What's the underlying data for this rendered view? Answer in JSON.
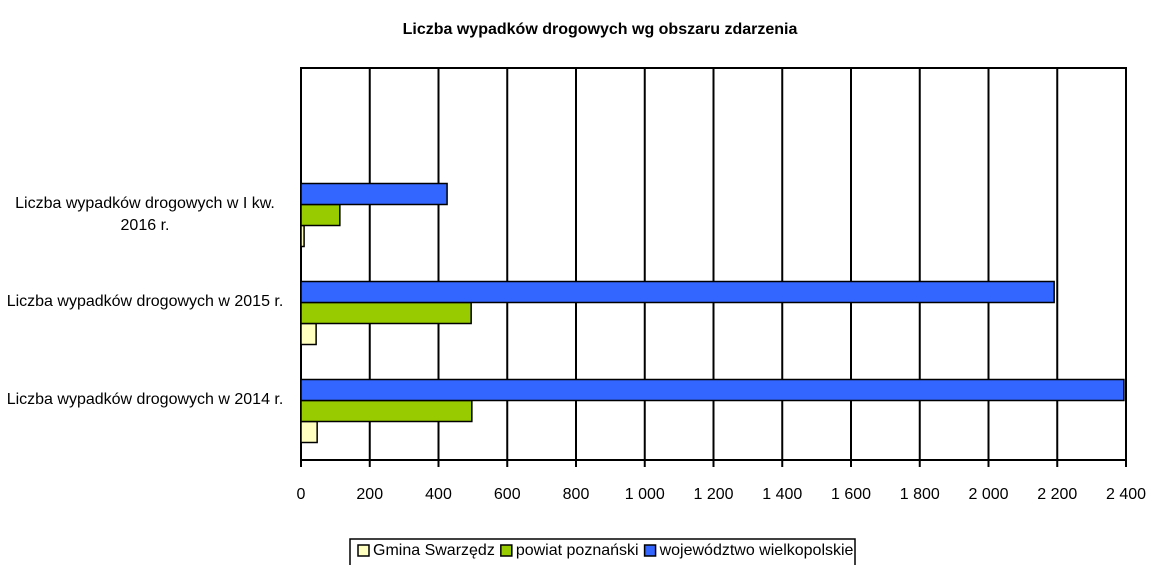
{
  "chart_data": {
    "type": "hbar",
    "title": "Liczba wypadków drogowych wg obszaru zdarzenia",
    "categories": [
      "Liczba wypadków drogowych w I kw. 2016 r.",
      "Liczba wypadków drogowych w 2015 r.",
      "Liczba wypadków drogowych w 2014 r."
    ],
    "series": [
      {
        "name": "Gmina Swarzędz",
        "color": "#ffffc0",
        "values": [
          9,
          44,
          47
        ]
      },
      {
        "name": "powiat poznański",
        "color": "#99cc00",
        "values": [
          113,
          495,
          497
        ]
      },
      {
        "name": "województwo wielkopolskie",
        "color": "#3366ff",
        "values": [
          425,
          2191,
          2394
        ]
      }
    ],
    "xlim": [
      0,
      2400
    ],
    "xticks": [
      0,
      200,
      400,
      600,
      800,
      {
        "value": 1000,
        "label": "1 000"
      },
      {
        "value": 1200,
        "label": "1 200"
      },
      {
        "value": 1400,
        "label": "1 400"
      },
      {
        "value": 1600,
        "label": "1 600"
      },
      {
        "value": 1800,
        "label": "1 800"
      },
      {
        "value": 2000,
        "label": "2 000"
      },
      {
        "value": 2200,
        "label": "2 200"
      },
      {
        "value": 2400,
        "label": "2 400"
      }
    ],
    "grid": true,
    "legend": "bottom"
  }
}
